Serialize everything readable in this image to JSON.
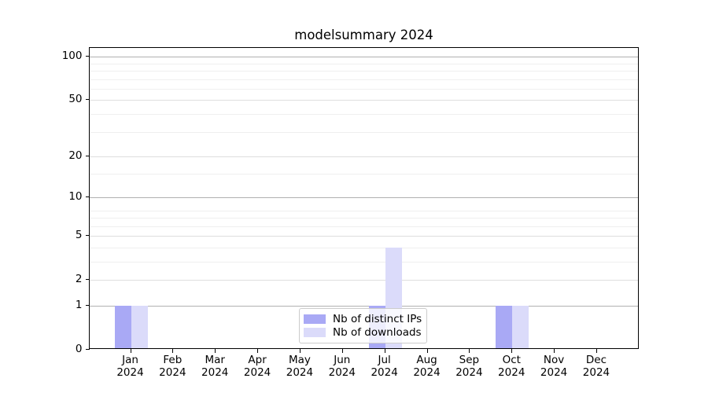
{
  "chart_data": {
    "type": "bar",
    "title": "modelsummary 2024",
    "months": [
      "Jan",
      "Feb",
      "Mar",
      "Apr",
      "May",
      "Jun",
      "Jul",
      "Aug",
      "Sep",
      "Oct",
      "Nov",
      "Dec"
    ],
    "year": "2024",
    "series": [
      {
        "name": "Nb of distinct IPs",
        "color": "#a9a9f5",
        "values": [
          1,
          0,
          0,
          0,
          0,
          0,
          1,
          0,
          0,
          1,
          0,
          0
        ]
      },
      {
        "name": "Nb of downloads",
        "color": "#dbdbfa",
        "values": [
          1,
          0,
          0,
          0,
          0,
          0,
          4,
          0,
          0,
          1,
          0,
          0
        ]
      }
    ],
    "yticks": [
      0,
      1,
      2,
      5,
      10,
      20,
      50,
      100
    ],
    "minor_gridlines": [
      3,
      4,
      6,
      7,
      8,
      15,
      30,
      40,
      60,
      70,
      80,
      90
    ],
    "scale": "log1p",
    "ylim": [
      0,
      115
    ],
    "xlabel": "",
    "ylabel": "",
    "grid": "horizontal",
    "legend_position": "lower center"
  },
  "colors": {
    "grid_strong": "#b0b0b0",
    "grid_mid": "#dedede",
    "grid_minor": "#efefef",
    "axis": "#000000",
    "background": "#ffffff"
  }
}
